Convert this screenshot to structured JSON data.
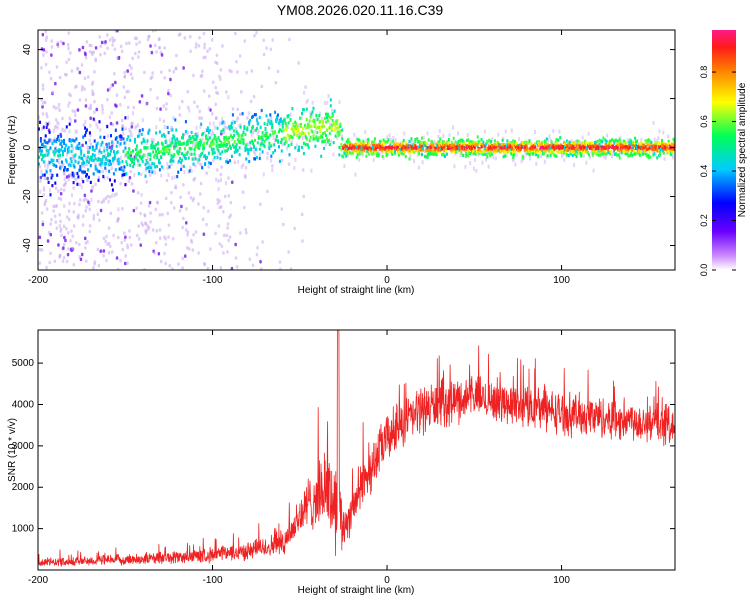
{
  "title": "YM08.2026.020.11.16.C39",
  "chart_data": [
    {
      "type": "heatmap",
      "xlabel": "Height of straight line (km)",
      "ylabel": "Frequency (Hz)",
      "xlim": [
        -200,
        165
      ],
      "ylim": [
        -50,
        48
      ],
      "xticks": [
        -200,
        -100,
        0,
        100
      ],
      "yticks": [
        40,
        20,
        0,
        -20,
        -40
      ],
      "ridge": [
        {
          "x": -200,
          "freq": -3
        },
        {
          "x": -150,
          "freq": -3
        },
        {
          "x": -120,
          "freq": 0
        },
        {
          "x": -90,
          "freq": 3
        },
        {
          "x": -60,
          "freq": 6
        },
        {
          "x": -40,
          "freq": 8
        },
        {
          "x": -28,
          "freq": 8
        },
        {
          "x": -26,
          "freq": 0
        },
        {
          "x": 165,
          "freq": 0
        }
      ],
      "noise_region": {
        "from": -200,
        "to": -60
      },
      "colorbar": {
        "label": "Normalized spectral amplitude",
        "ticks": [
          "0.0",
          "0.2",
          "0.4",
          "0.6",
          "0.8"
        ],
        "range": [
          0,
          0.97
        ]
      }
    },
    {
      "type": "line",
      "color": "#ee2222",
      "xlabel": "Height of straight line (km)",
      "ylabel": "SNR (10 * v/v)",
      "xlim": [
        -200,
        165
      ],
      "ylim": [
        0,
        5800
      ],
      "xticks": [
        -200,
        -100,
        0,
        100
      ],
      "yticks": [
        1000,
        2000,
        3000,
        4000,
        5000
      ],
      "envelope": [
        {
          "x": -200,
          "mean": 180,
          "spread": 120
        },
        {
          "x": -150,
          "mean": 250,
          "spread": 150
        },
        {
          "x": -110,
          "mean": 330,
          "spread": 200
        },
        {
          "x": -80,
          "mean": 450,
          "spread": 250
        },
        {
          "x": -60,
          "mean": 650,
          "spread": 350
        },
        {
          "x": -45,
          "mean": 1600,
          "spread": 800
        },
        {
          "x": -35,
          "mean": 2000,
          "spread": 1000
        },
        {
          "x": -28,
          "mean": 1500,
          "spread": 1500
        },
        {
          "x": -25,
          "mean": 1000,
          "spread": 600
        },
        {
          "x": -15,
          "mean": 2000,
          "spread": 700
        },
        {
          "x": 0,
          "mean": 3200,
          "spread": 700
        },
        {
          "x": 20,
          "mean": 3900,
          "spread": 700
        },
        {
          "x": 50,
          "mean": 4200,
          "spread": 600
        },
        {
          "x": 100,
          "mean": 3800,
          "spread": 600
        },
        {
          "x": 165,
          "mean": 3500,
          "spread": 600
        }
      ],
      "peak": {
        "x": -28,
        "value": 5800
      }
    }
  ]
}
